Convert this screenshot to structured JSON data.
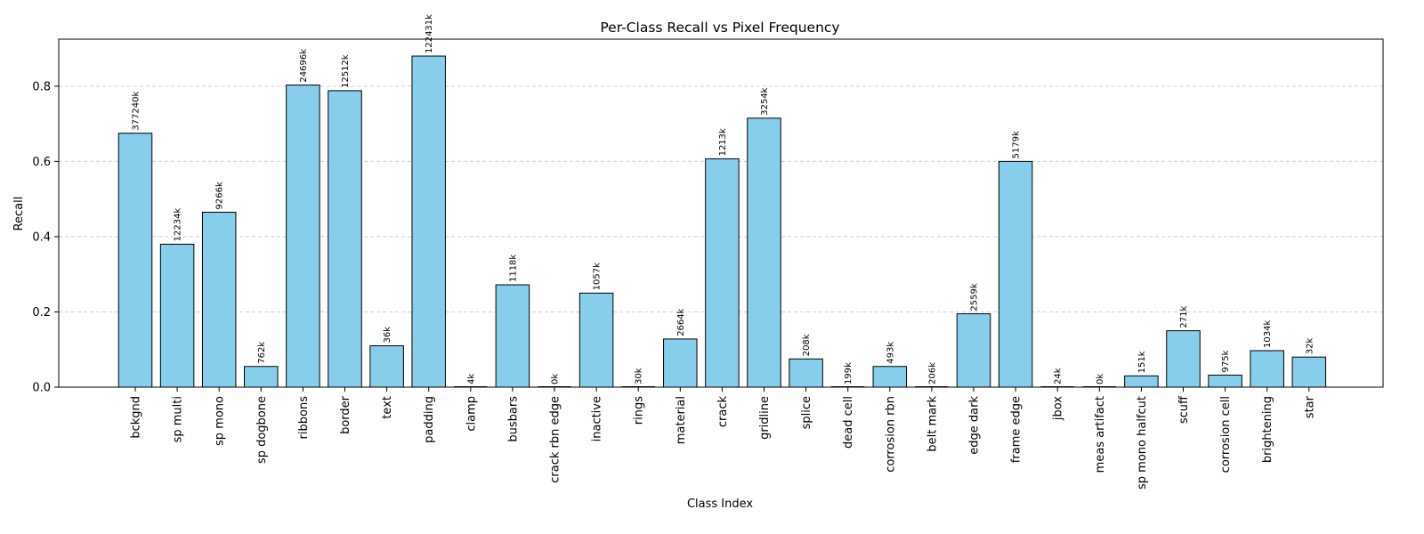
{
  "chart_data": {
    "type": "bar",
    "title": "Per-Class Recall vs Pixel Frequency",
    "xlabel": "Class Index",
    "ylabel": "Recall",
    "ylim": [
      0,
      0.925
    ],
    "yticks": [
      "0.0",
      "0.2",
      "0.4",
      "0.6",
      "0.8"
    ],
    "grid": "y-dashed",
    "bar_color": "#87CEEB",
    "categories": [
      "bckgnd",
      "sp multi",
      "sp mono",
      "sp dogbone",
      "ribbons",
      "border",
      "text",
      "padding",
      "clamp",
      "busbars",
      "crack rbn edge",
      "inactive",
      "rings",
      "material",
      "crack",
      "gridline",
      "splice",
      "dead cell",
      "corrosion rbn",
      "belt mark",
      "edge dark",
      "frame edge",
      "jbox",
      "meas artifact",
      "sp mono halfcut",
      "scuff",
      "corrosion cell",
      "brightening",
      "star"
    ],
    "values": [
      0.675,
      0.38,
      0.465,
      0.055,
      0.803,
      0.788,
      0.11,
      0.88,
      0.0,
      0.272,
      0.0,
      0.25,
      0.0,
      0.128,
      0.607,
      0.715,
      0.075,
      0.0,
      0.055,
      0.0,
      0.195,
      0.6,
      0.0,
      0.0,
      0.03,
      0.15,
      0.032,
      0.097,
      0.08
    ],
    "data_labels": [
      "377240k",
      "12234k",
      "9266k",
      "762k",
      "24696k",
      "12512k",
      "36k",
      "122431k",
      "4k",
      "1118k",
      "0k",
      "1057k",
      "30k",
      "2664k",
      "1213k",
      "3254k",
      "208k",
      "199k",
      "493k",
      "206k",
      "2559k",
      "5179k",
      "24k",
      "0k",
      "151k",
      "271k",
      "975k",
      "1034k",
      "32k"
    ]
  }
}
